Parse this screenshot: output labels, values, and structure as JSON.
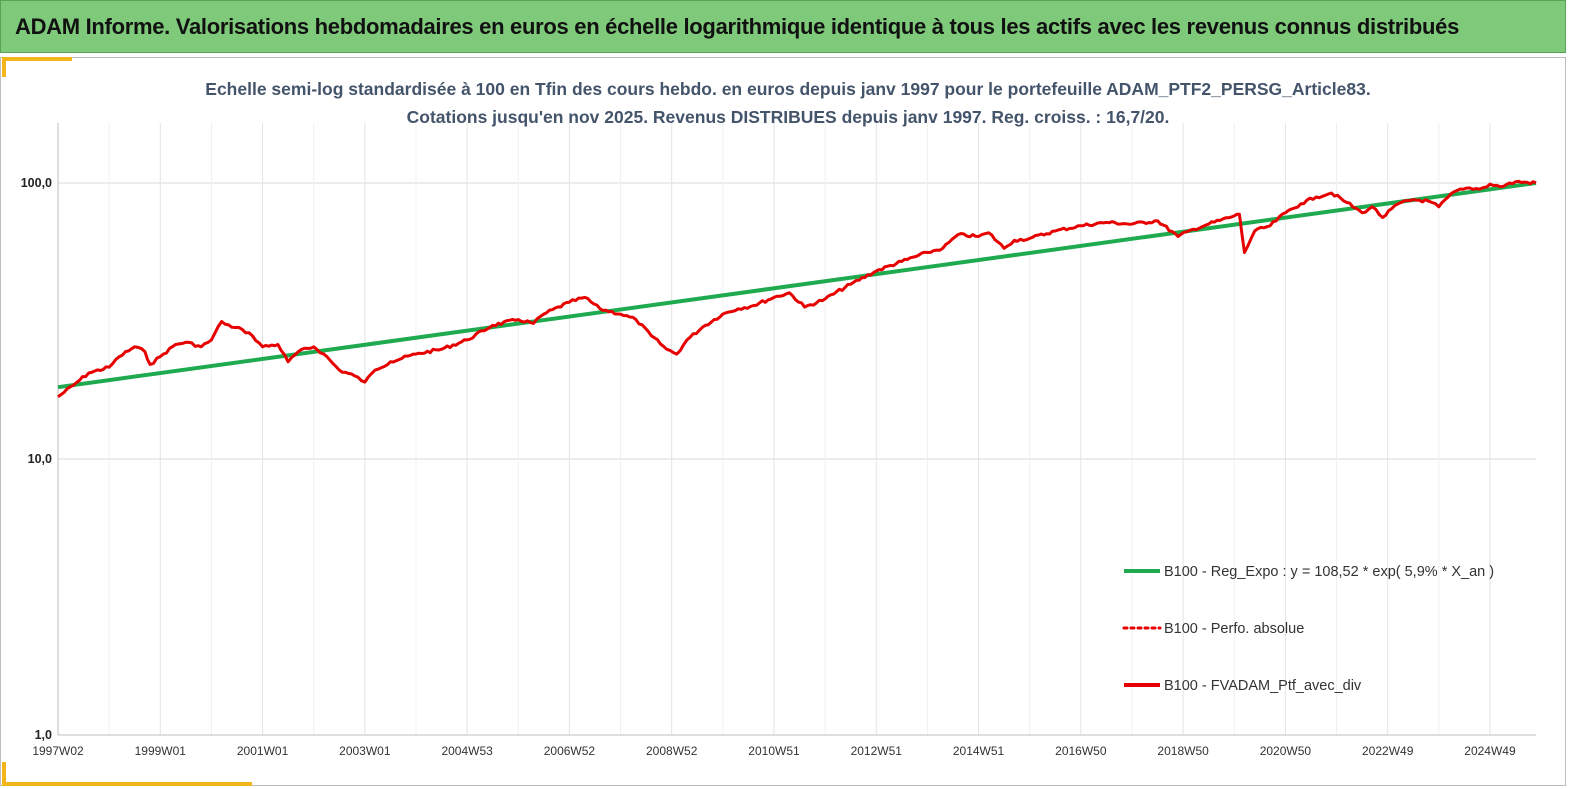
{
  "banner": {
    "title": "ADAM Informe. Valorisations hebdomadaires en euros en échelle logarithmique identique à tous les actifs avec les revenus connus distribués"
  },
  "colors": {
    "banner_bg": "#7fc97a",
    "accent_corner": "#f2b51a",
    "regression": "#1faa4f",
    "portfolio": "#e60000",
    "title_text": "#44546a"
  },
  "chart_data": {
    "type": "line",
    "title_line1": "Echelle semi-log standardisée  à 100 en Tfin des cours hebdo. en euros depuis janv 1997 pour le portefeuille ADAM_PTF2_PERSG_Article83.",
    "title_line2": "Cotations jusqu'en nov 2025. Revenus DISTRIBUES depuis janv 1997. Reg. croiss. : 16,7/20.",
    "y_scale": "log",
    "ylim": [
      1,
      100
    ],
    "y_ticks": [
      {
        "value": 1,
        "label": "1,0"
      },
      {
        "value": 10,
        "label": "10,0"
      },
      {
        "value": 100,
        "label": "100,0"
      }
    ],
    "xlim": [
      1997.0,
      2025.9
    ],
    "x_ticks": [
      {
        "value": 1997.0,
        "label": "1997W02"
      },
      {
        "value": 1999.0,
        "label": "1999W01"
      },
      {
        "value": 2001.0,
        "label": "2001W01"
      },
      {
        "value": 2003.0,
        "label": "2003W01"
      },
      {
        "value": 2005.0,
        "label": "2004W53"
      },
      {
        "value": 2007.0,
        "label": "2006W52"
      },
      {
        "value": 2009.0,
        "label": "2008W52"
      },
      {
        "value": 2011.0,
        "label": "2010W51"
      },
      {
        "value": 2013.0,
        "label": "2012W51"
      },
      {
        "value": 2015.0,
        "label": "2014W51"
      },
      {
        "value": 2017.0,
        "label": "2016W50"
      },
      {
        "value": 2019.0,
        "label": "2018W50"
      },
      {
        "value": 2021.0,
        "label": "2020W50"
      },
      {
        "value": 2023.0,
        "label": "2022W49"
      },
      {
        "value": 2025.0,
        "label": "2024W49"
      }
    ],
    "grid": "vertical and horizontal",
    "legend_position": "bottom-right",
    "series": [
      {
        "name": "B100 - Reg_Expo : y = 108,52 * exp( 5,9% *  X_an )",
        "style": "solid-green",
        "x": [
          1997.0,
          2025.9
        ],
        "y": [
          18.2,
          100
        ]
      },
      {
        "name": "B100 - Perfo. absolue",
        "style": "dotted-red",
        "x": [],
        "y": []
      },
      {
        "name": "B100 - FVADAM_Ptf_avec_div",
        "style": "solid-red",
        "x": [
          1997.0,
          1997.3,
          1997.6,
          1998.0,
          1998.2,
          1998.5,
          1998.7,
          1998.8,
          1999.0,
          1999.3,
          1999.5,
          1999.8,
          2000.0,
          2000.2,
          2000.4,
          2000.6,
          2000.8,
          2001.0,
          2001.3,
          2001.5,
          2001.7,
          2002.0,
          2002.2,
          2002.5,
          2002.8,
          2003.0,
          2003.2,
          2003.5,
          2004.0,
          2004.5,
          2005.0,
          2005.5,
          2006.0,
          2006.3,
          2006.5,
          2007.0,
          2007.3,
          2007.6,
          2008.0,
          2008.3,
          2008.6,
          2008.9,
          2009.1,
          2009.3,
          2009.6,
          2010.0,
          2010.3,
          2010.6,
          2011.0,
          2011.3,
          2011.6,
          2012.0,
          2012.5,
          2013.0,
          2013.5,
          2014.0,
          2014.3,
          2014.6,
          2015.0,
          2015.2,
          2015.5,
          2015.7,
          2016.0,
          2016.5,
          2017.0,
          2017.5,
          2018.0,
          2018.5,
          2018.9,
          2019.2,
          2019.5,
          2020.0,
          2020.1,
          2020.2,
          2020.4,
          2020.7,
          2021.0,
          2021.3,
          2021.6,
          2021.9,
          2022.2,
          2022.5,
          2022.7,
          2022.9,
          2023.2,
          2023.5,
          2023.8,
          2024.0,
          2024.3,
          2024.6,
          2024.8,
          2025.0,
          2025.2,
          2025.5,
          2025.9
        ],
        "y": [
          16.8,
          18.5,
          20.5,
          21.5,
          23.5,
          25.5,
          24.5,
          22.0,
          23.5,
          26.0,
          26.5,
          25.5,
          27.0,
          31.5,
          30.0,
          29.5,
          28.0,
          25.5,
          26.0,
          22.5,
          24.5,
          25.5,
          24.0,
          21.0,
          20.0,
          19.0,
          21.0,
          22.5,
          24.0,
          25.0,
          27.0,
          30.5,
          32.0,
          31.0,
          33.5,
          37.0,
          38.5,
          35.0,
          33.5,
          32.0,
          28.0,
          25.0,
          24.0,
          27.0,
          30.0,
          33.5,
          35.0,
          36.0,
          38.5,
          40.0,
          35.5,
          38.0,
          43.0,
          48.0,
          52.0,
          56.0,
          58.0,
          65.0,
          64.0,
          66.0,
          58.0,
          62.0,
          63.0,
          67.0,
          70.0,
          72.0,
          71.0,
          73.0,
          64.0,
          68.0,
          71.0,
          76.0,
          77.0,
          56.0,
          67.0,
          70.0,
          78.0,
          84.0,
          89.0,
          92.0,
          85.0,
          78.0,
          82.0,
          75.0,
          84.0,
          87.0,
          86.0,
          82.0,
          93.0,
          96.0,
          95.0,
          99.0,
          97.0,
          101.0,
          100.0
        ]
      }
    ]
  }
}
